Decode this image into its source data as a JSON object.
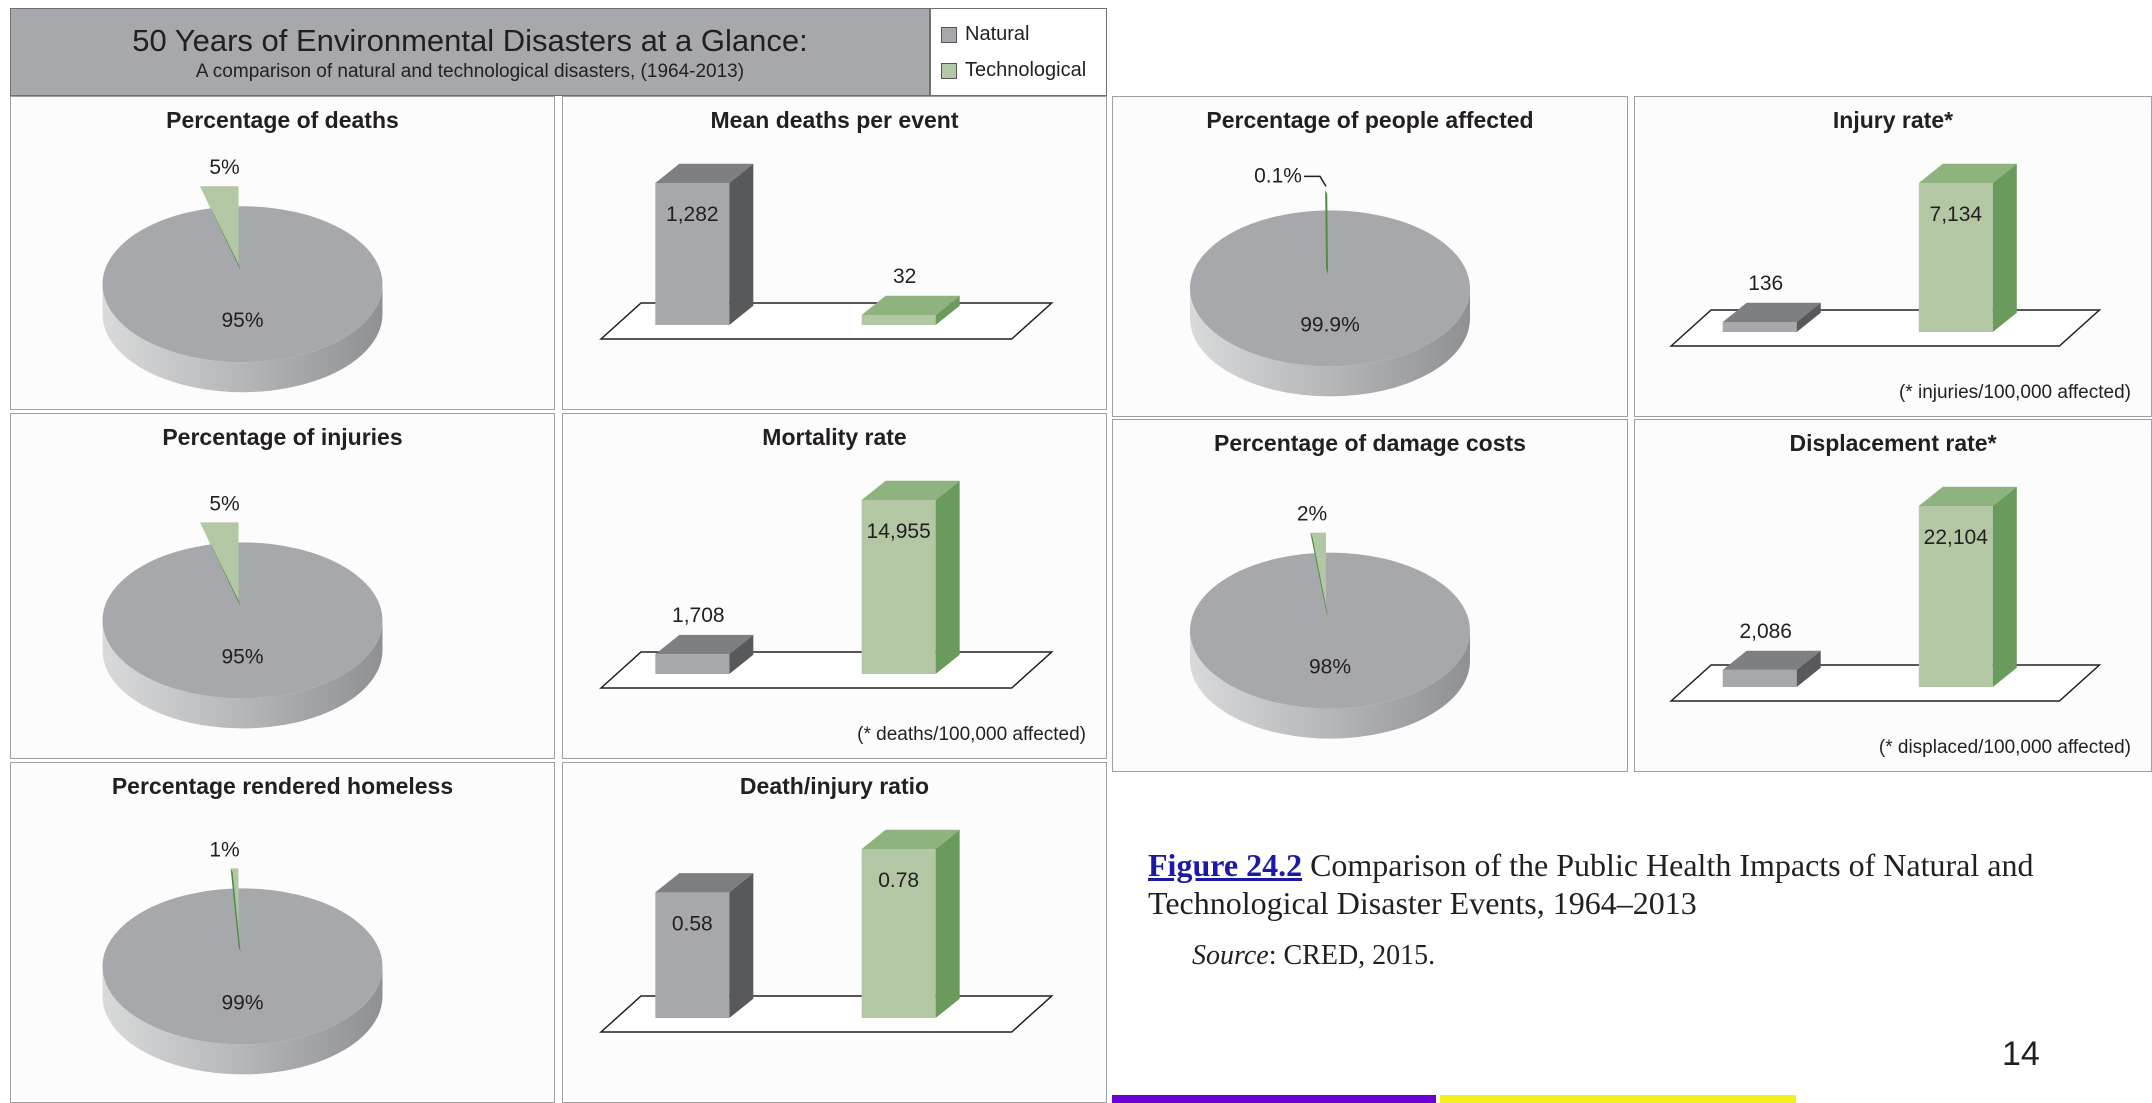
{
  "header": {
    "title": "50 Years of Environmental Disasters at a Glance:",
    "subtitle": "A comparison of natural and technological disasters, (1964-2013)"
  },
  "legend": [
    {
      "label": "Natural",
      "color": "#a6a8ab"
    },
    {
      "label": "Technological",
      "color": "#b3c7a5"
    }
  ],
  "colors": {
    "natural": "#a6a8ab",
    "natural_dark": "#58595b",
    "technological": "#b3c7a5",
    "technological_dark": "#6a9a5c",
    "pie_slice": "#4f8a45"
  },
  "chart_data": [
    {
      "type": "pie",
      "title": "Percentage of deaths",
      "categories": [
        "Natural",
        "Technological"
      ],
      "values": [
        95,
        5
      ],
      "labels": [
        "95%",
        "5%"
      ]
    },
    {
      "type": "bar",
      "title": "Mean deaths per event",
      "categories": [
        "Natural",
        "Technological"
      ],
      "values": [
        1282,
        32
      ],
      "labels": [
        "1,282",
        "32"
      ],
      "footnote": ""
    },
    {
      "type": "pie",
      "title": "Percentage of injuries",
      "categories": [
        "Natural",
        "Technological"
      ],
      "values": [
        95,
        5
      ],
      "labels": [
        "95%",
        "5%"
      ]
    },
    {
      "type": "bar",
      "title": "Mortality rate",
      "categories": [
        "Natural",
        "Technological"
      ],
      "values": [
        1708,
        14955
      ],
      "labels": [
        "1,708",
        "14,955"
      ],
      "footnote": "(* deaths/100,000 affected)"
    },
    {
      "type": "pie",
      "title": "Percentage rendered homeless",
      "categories": [
        "Natural",
        "Technological"
      ],
      "values": [
        99,
        1
      ],
      "labels": [
        "99%",
        "1%"
      ]
    },
    {
      "type": "bar",
      "title": "Death/injury ratio",
      "categories": [
        "Natural",
        "Technological"
      ],
      "values": [
        0.58,
        0.78
      ],
      "labels": [
        "0.58",
        "0.78"
      ],
      "footnote": ""
    },
    {
      "type": "pie",
      "title": "Percentage of people affected",
      "categories": [
        "Natural",
        "Technological"
      ],
      "values": [
        99.9,
        0.1
      ],
      "labels": [
        "99.9%",
        "0.1%"
      ]
    },
    {
      "type": "bar",
      "title": "Injury rate*",
      "categories": [
        "Natural",
        "Technological"
      ],
      "values": [
        136,
        7134
      ],
      "labels": [
        "136",
        "7,134"
      ],
      "footnote": "(* injuries/100,000 affected)"
    },
    {
      "type": "pie",
      "title": "Percentage of damage costs",
      "categories": [
        "Natural",
        "Technological"
      ],
      "values": [
        98,
        2
      ],
      "labels": [
        "98%",
        "2%"
      ]
    },
    {
      "type": "bar",
      "title": "Displacement rate*",
      "categories": [
        "Natural",
        "Technological"
      ],
      "values": [
        2086,
        22104
      ],
      "labels": [
        "2,086",
        "22,104"
      ],
      "footnote": "(* displaced/100,000 affected)"
    }
  ],
  "caption": {
    "link": "Figure 24.2",
    "text": " Comparison of the Public Health Impacts of Natural and Technological Disaster Events, 1964–2013",
    "source_label": "Source",
    "source_text": ": CRED, 2015."
  },
  "page_number": "14",
  "accent_bars": [
    "#6a00d6",
    "#f4ef1e"
  ]
}
